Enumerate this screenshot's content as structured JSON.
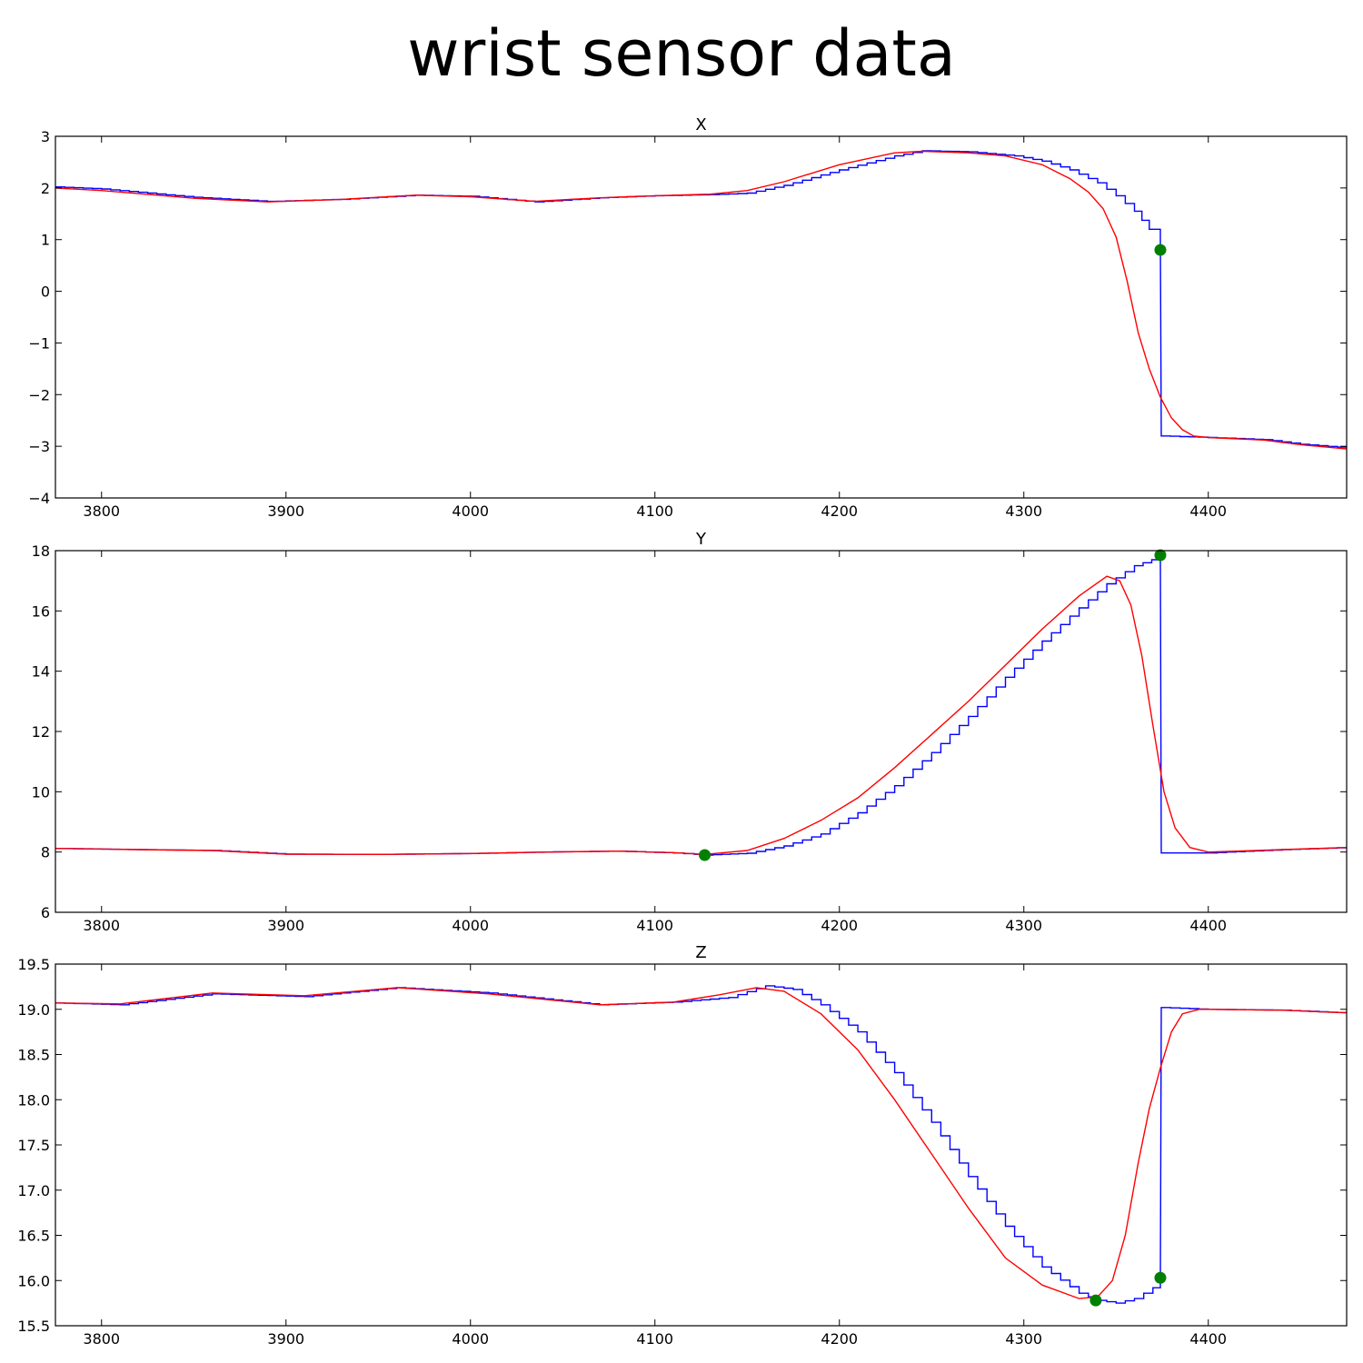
{
  "chart_data": {
    "title": "wrist sensor data",
    "colors": {
      "raw": "#0000ff",
      "filtered": "#ff0000",
      "marker": "#008000"
    },
    "subplots": [
      {
        "type": "line",
        "title": "X",
        "xlim": [
          3775,
          4475
        ],
        "ylim": [
          -4,
          3
        ],
        "xticks": [
          3800,
          3900,
          4000,
          4100,
          4200,
          4300,
          4400
        ],
        "yticks": [
          -4,
          -3,
          -2,
          -1,
          0,
          1,
          2,
          3
        ],
        "ytick_labels": [
          "−4",
          "−3",
          "−2",
          "−1",
          "0",
          "1",
          "2",
          "3"
        ],
        "series": [
          {
            "color": "#0000ff",
            "step": true,
            "x": [
              3775,
              3800,
              3850,
              3890,
              3930,
              3970,
              4000,
              4035,
              4070,
              4100,
              4130,
              4150,
              4170,
              4200,
              4230,
              4245,
              4270,
              4295,
              4310,
              4325,
              4340,
              4350,
              4360,
              4368,
              4374,
              4374.5,
              4400,
              4430,
              4450,
              4475
            ],
            "y": [
              2.02,
              1.98,
              1.82,
              1.74,
              1.78,
              1.86,
              1.84,
              1.73,
              1.81,
              1.85,
              1.87,
              1.9,
              2.05,
              2.35,
              2.62,
              2.72,
              2.7,
              2.62,
              2.52,
              2.35,
              2.1,
              1.85,
              1.55,
              1.2,
              0.95,
              -2.8,
              -2.83,
              -2.87,
              -2.96,
              -3.03
            ]
          },
          {
            "color": "#ff0000",
            "step": false,
            "x": [
              3775,
              3800,
              3850,
              3890,
              3930,
              3970,
              4000,
              4035,
              4070,
              4100,
              4130,
              4150,
              4170,
              4200,
              4230,
              4245,
              4270,
              4290,
              4310,
              4325,
              4335,
              4343,
              4350,
              4356,
              4362,
              4368,
              4374,
              4380,
              4386,
              4392,
              4400,
              4430,
              4450,
              4475
            ],
            "y": [
              2.0,
              1.95,
              1.8,
              1.73,
              1.78,
              1.86,
              1.83,
              1.74,
              1.81,
              1.85,
              1.88,
              1.95,
              2.12,
              2.45,
              2.68,
              2.71,
              2.68,
              2.62,
              2.45,
              2.18,
              1.92,
              1.6,
              1.05,
              0.2,
              -0.8,
              -1.5,
              -2.05,
              -2.45,
              -2.68,
              -2.8,
              -2.83,
              -2.88,
              -2.97,
              -3.05
            ]
          }
        ],
        "markers": [
          {
            "x": 4374,
            "y": 0.8
          }
        ]
      },
      {
        "type": "line",
        "title": "Y",
        "xlim": [
          3775,
          4475
        ],
        "ylim": [
          6,
          18
        ],
        "xticks": [
          3800,
          3900,
          4000,
          4100,
          4200,
          4300,
          4400
        ],
        "yticks": [
          6,
          8,
          10,
          12,
          14,
          16,
          18
        ],
        "ytick_labels": [
          "6",
          "8",
          "10",
          "12",
          "14",
          "16",
          "18"
        ],
        "series": [
          {
            "color": "#0000ff",
            "step": true,
            "x": [
              3775,
              3820,
              3860,
              3900,
              3950,
              4000,
              4040,
              4080,
              4110,
              4127,
              4150,
              4170,
              4190,
              4210,
              4230,
              4250,
              4270,
              4290,
              4310,
              4330,
              4345,
              4360,
              4374,
              4374.5,
              4400,
              4440,
              4475
            ],
            "y": [
              8.12,
              8.08,
              8.05,
              7.93,
              7.92,
              7.95,
              8.0,
              8.03,
              7.97,
              7.9,
              7.96,
              8.2,
              8.6,
              9.3,
              10.2,
              11.3,
              12.5,
              13.8,
              15.0,
              16.1,
              16.9,
              17.5,
              17.8,
              7.97,
              7.97,
              8.08,
              8.15
            ]
          },
          {
            "color": "#ff0000",
            "step": false,
            "x": [
              3775,
              3820,
              3860,
              3900,
              3950,
              4000,
              4040,
              4080,
              4110,
              4127,
              4150,
              4170,
              4190,
              4210,
              4230,
              4250,
              4270,
              4290,
              4310,
              4330,
              4345,
              4352,
              4358,
              4364,
              4370,
              4376,
              4382,
              4390,
              4400,
              4440,
              4475
            ],
            "y": [
              8.12,
              8.08,
              8.05,
              7.93,
              7.92,
              7.95,
              8.0,
              8.03,
              7.98,
              7.92,
              8.05,
              8.45,
              9.05,
              9.8,
              10.8,
              11.9,
              13.0,
              14.2,
              15.4,
              16.5,
              17.15,
              17.0,
              16.2,
              14.5,
              12.2,
              10.0,
              8.8,
              8.15,
              8.0,
              8.08,
              8.15
            ]
          }
        ],
        "markers": [
          {
            "x": 4127,
            "y": 7.9
          },
          {
            "x": 4374,
            "y": 17.85
          }
        ]
      },
      {
        "type": "line",
        "title": "Z",
        "xlim": [
          3775,
          4475
        ],
        "ylim": [
          15.5,
          19.5
        ],
        "xticks": [
          3800,
          3900,
          4000,
          4100,
          4200,
          4300,
          4400
        ],
        "yticks": [
          15.5,
          16.0,
          16.5,
          17.0,
          17.5,
          18.0,
          18.5,
          19.0,
          19.5
        ],
        "ytick_labels": [
          "15.5",
          "16.0",
          "16.5",
          "17.0",
          "17.5",
          "18.0",
          "18.5",
          "19.0",
          "19.5"
        ],
        "series": [
          {
            "color": "#0000ff",
            "step": true,
            "x": [
              3775,
              3810,
              3860,
              3910,
              3960,
              4010,
              4070,
              4110,
              4140,
              4160,
              4175,
              4190,
              4210,
              4230,
              4250,
              4270,
              4290,
              4310,
              4330,
              4340,
              4350,
              4360,
              4370,
              4374,
              4374.5,
              4400,
              4440,
              4475
            ],
            "y": [
              19.07,
              19.05,
              19.17,
              19.14,
              19.24,
              19.18,
              19.05,
              19.08,
              19.13,
              19.26,
              19.22,
              19.05,
              18.75,
              18.3,
              17.75,
              17.15,
              16.6,
              16.15,
              15.86,
              15.78,
              15.75,
              15.8,
              15.92,
              16.0,
              19.02,
              19.0,
              18.99,
              18.96
            ]
          },
          {
            "color": "#ff0000",
            "step": false,
            "x": [
              3775,
              3810,
              3860,
              3910,
              3960,
              4010,
              4070,
              4110,
              4135,
              4155,
              4170,
              4190,
              4210,
              4230,
              4250,
              4270,
              4290,
              4310,
              4330,
              4340,
              4348,
              4355,
              4362,
              4368,
              4374,
              4380,
              4386,
              4395,
              4400,
              4440,
              4475
            ],
            "y": [
              19.07,
              19.06,
              19.18,
              19.15,
              19.24,
              19.17,
              19.05,
              19.08,
              19.16,
              19.24,
              19.2,
              18.95,
              18.55,
              18.0,
              17.4,
              16.8,
              16.25,
              15.95,
              15.8,
              15.82,
              16.0,
              16.5,
              17.3,
              17.9,
              18.35,
              18.75,
              18.95,
              19.0,
              19.0,
              18.99,
              18.96
            ]
          }
        ],
        "markers": [
          {
            "x": 4339,
            "y": 15.78
          },
          {
            "x": 4374,
            "y": 16.03
          }
        ]
      }
    ]
  }
}
